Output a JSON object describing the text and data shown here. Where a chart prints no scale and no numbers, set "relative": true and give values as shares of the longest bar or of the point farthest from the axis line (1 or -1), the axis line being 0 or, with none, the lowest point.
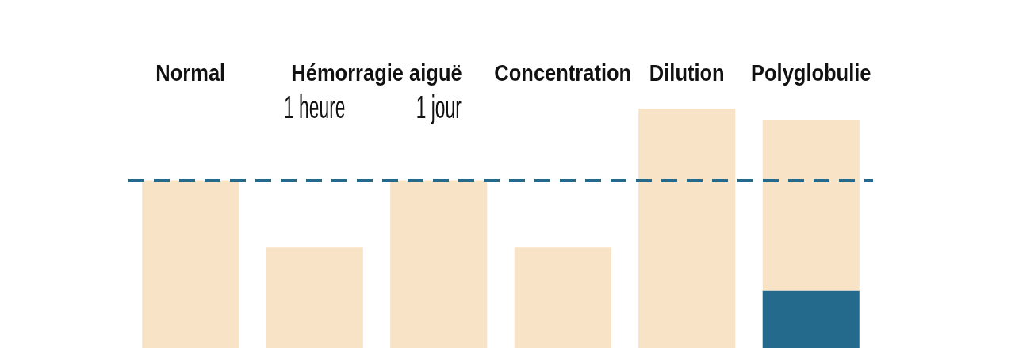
{
  "chart_data": {
    "type": "bar",
    "stacked": true,
    "relative": true,
    "categories": [
      "Normal",
      "1 heure",
      "1 jour",
      "Concentration",
      "Dilution",
      "Polyglobulie"
    ],
    "series": [
      {
        "color": "#236a8c",
        "values": [
          null,
          null,
          null,
          null,
          null,
          0.24
        ]
      },
      {
        "color": "#f9e3c6",
        "values": [
          0.7,
          0.42,
          0.7,
          0.42,
          1,
          0.71
        ]
      }
    ],
    "ref_lines": [
      {
        "axis": "y",
        "value": 0.7,
        "color": "#236a8c",
        "line_style": "dashed"
      }
    ],
    "annotations": [
      "Hémorragie aiguë"
    ]
  }
}
